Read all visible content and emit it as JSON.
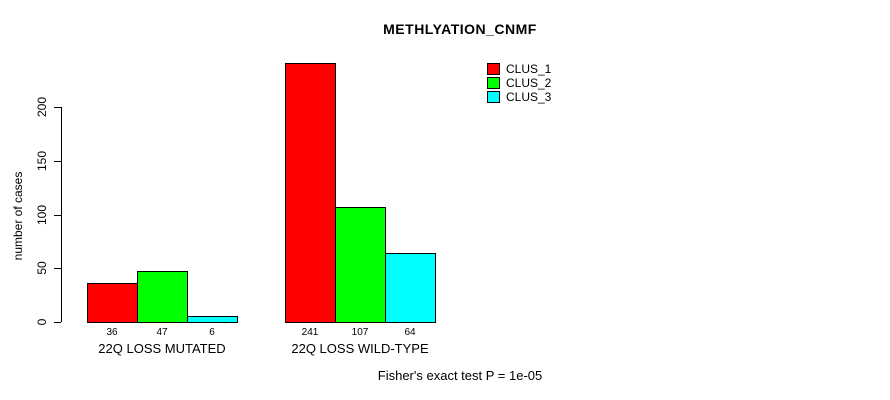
{
  "chart_data": {
    "type": "bar",
    "title": "METHLYATION_CNMF",
    "ylabel": "number of cases",
    "xlabel": "",
    "categories": [
      "22Q LOSS MUTATED",
      "22Q LOSS WILD-TYPE"
    ],
    "series": [
      {
        "name": "CLUS_1",
        "color": "#FF0000",
        "values": [
          36,
          241
        ]
      },
      {
        "name": "CLUS_2",
        "color": "#00FF00",
        "values": [
          47,
          107
        ]
      },
      {
        "name": "CLUS_3",
        "color": "#00FFFF",
        "values": [
          6,
          64
        ]
      }
    ],
    "bar_value_labels": [
      [
        "36",
        "47",
        "6"
      ],
      [
        "241",
        "107",
        "64"
      ]
    ],
    "yticks": [
      0,
      50,
      100,
      150,
      200
    ],
    "ylim": [
      0,
      250
    ],
    "grid": false,
    "legend_position": "top-right",
    "annotation": "Fisher's exact test P = 1e-05"
  }
}
